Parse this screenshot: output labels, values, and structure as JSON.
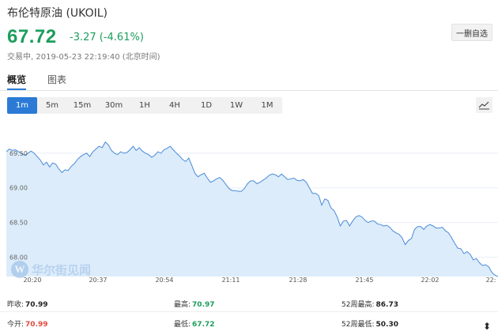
{
  "header": {
    "title": "布伦特原油 (UKOIL)",
    "price": "67.72",
    "change": "-3.27 (-4.61%)",
    "status": "交易中, 2019-05-23 22:19:40 (北京时间)",
    "delete_label": "一删自选"
  },
  "tabs": [
    {
      "label": "概览",
      "active": true
    },
    {
      "label": "图表",
      "active": false
    }
  ],
  "periods": [
    {
      "label": "1m",
      "active": true
    },
    {
      "label": "5m"
    },
    {
      "label": "15m"
    },
    {
      "label": "30m"
    },
    {
      "label": "1H"
    },
    {
      "label": "4H"
    },
    {
      "label": "1D"
    },
    {
      "label": "1W"
    },
    {
      "label": "1M"
    }
  ],
  "chart_data": {
    "type": "area",
    "x_ticks": [
      "20:20",
      "20:37",
      "20:54",
      "21:11",
      "21:28",
      "21:45",
      "22:02",
      "22:"
    ],
    "y_ticks": [
      "69.50",
      "69.00",
      "68.50",
      "68.00"
    ],
    "ylim": [
      67.72,
      70.0
    ],
    "series": [
      {
        "values": [
          69.52,
          69.56,
          69.54,
          69.55,
          69.52,
          69.49,
          69.47,
          69.5,
          69.53,
          69.5,
          69.45,
          69.4,
          69.33,
          69.37,
          69.3,
          69.36,
          69.34,
          69.27,
          69.22,
          69.26,
          69.25,
          69.31,
          69.35,
          69.41,
          69.45,
          69.48,
          69.5,
          69.45,
          69.52,
          69.56,
          69.6,
          69.58,
          69.66,
          69.62,
          69.54,
          69.5,
          69.48,
          69.52,
          69.5,
          69.51,
          69.55,
          69.6,
          69.54,
          69.58,
          69.53,
          69.5,
          69.48,
          69.44,
          69.47,
          69.52,
          69.5,
          69.55,
          69.57,
          69.6,
          69.55,
          69.5,
          69.46,
          69.41,
          69.38,
          69.43,
          69.32,
          69.21,
          69.16,
          69.19,
          69.21,
          69.14,
          69.08,
          69.1,
          69.13,
          69.15,
          69.11,
          69.05,
          68.99,
          68.96,
          68.96,
          68.95,
          68.95,
          68.99,
          69.06,
          69.1,
          69.1,
          69.06,
          69.08,
          69.11,
          69.14,
          69.18,
          69.2,
          69.19,
          69.16,
          69.2,
          69.16,
          69.12,
          69.13,
          69.14,
          69.11,
          69.1,
          69.12,
          69.08,
          69.0,
          68.92,
          68.92,
          68.89,
          68.75,
          68.84,
          68.82,
          68.71,
          68.67,
          68.58,
          68.45,
          68.52,
          68.53,
          68.45,
          68.52,
          68.58,
          68.6,
          68.58,
          68.53,
          68.5,
          68.52,
          68.52,
          68.48,
          68.47,
          68.45,
          68.46,
          68.43,
          68.38,
          68.35,
          68.33,
          68.28,
          68.18,
          68.24,
          68.27,
          68.4,
          68.44,
          68.44,
          68.4,
          68.45,
          68.47,
          68.45,
          68.42,
          68.42,
          68.43,
          68.38,
          68.35,
          68.28,
          68.2,
          68.13,
          68.12,
          68.05,
          68.08,
          68.04,
          67.96,
          67.98,
          67.92,
          67.88,
          67.89,
          67.86,
          67.78,
          67.74,
          67.72
        ]
      }
    ]
  },
  "watermark": {
    "logo_letter": "W",
    "text": "华尔街见闻"
  },
  "stats": {
    "prev_close_label": "昨收:",
    "prev_close": "70.99",
    "open_label": "今开:",
    "open": "70.99",
    "high_label": "最高:",
    "high": "70.97",
    "low_label": "最低:",
    "low": "67.72",
    "w52_high_label": "52周最高:",
    "w52_high": "86.73",
    "w52_low_label": "52周最低:",
    "w52_low": "50.30"
  },
  "colors": {
    "up": "#1c9d5c",
    "down_red": "#e04a3c",
    "accent": "#2b7bd6",
    "area_fill": "#dcecfa",
    "area_line": "#4a8ad8"
  }
}
